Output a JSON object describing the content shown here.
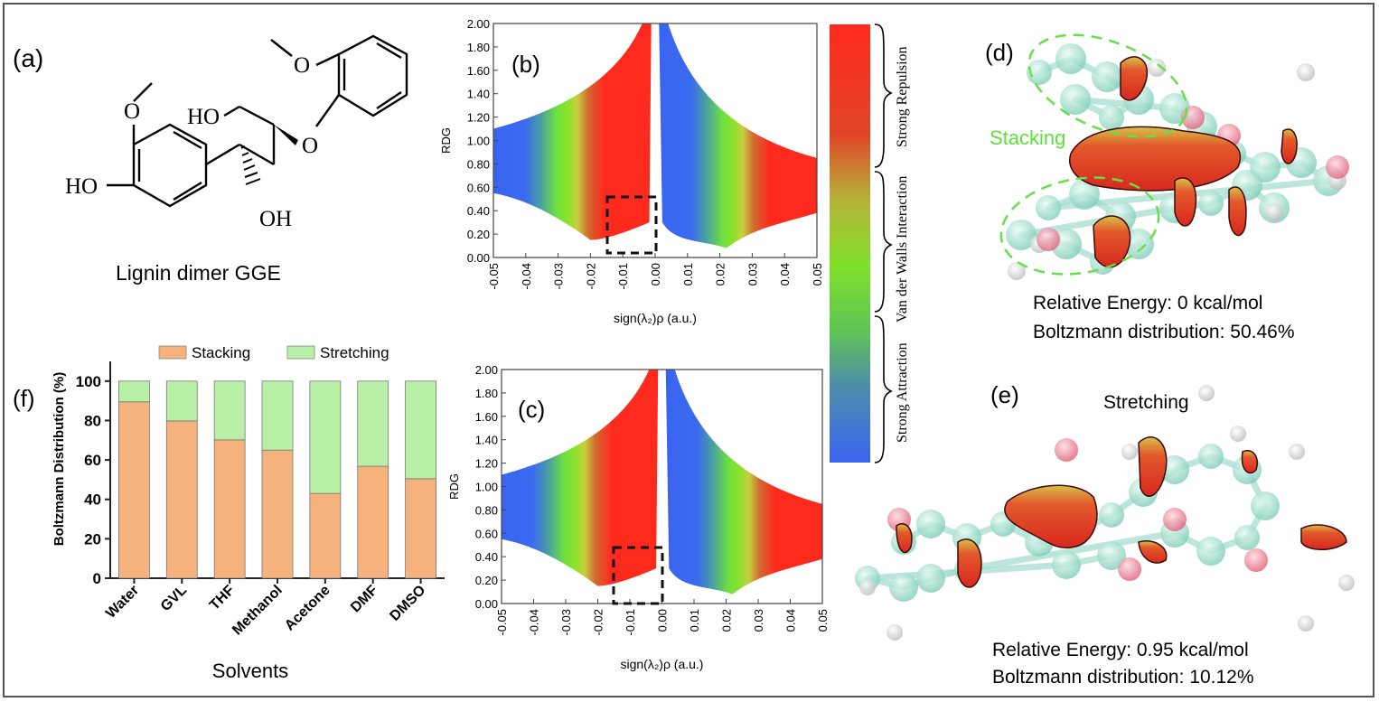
{
  "panel_a": {
    "label": "(a)",
    "caption": "Lignin dimer GGE",
    "atoms": {
      "o_methoxy_left": "O",
      "ho_left": "HO",
      "ho_chain": "HO",
      "o_ether": "O",
      "oh": "OH",
      "o_methoxy_right": "O"
    }
  },
  "panel_b": {
    "label": "(b)",
    "xlabel": "sign(λ₂)ρ (a.u.)",
    "ylabel": "RDG",
    "xticks": [
      "-0.05",
      "-0.04",
      "-0.03",
      "-0.02",
      "-0.01",
      "0.00",
      "0.01",
      "0.02",
      "0.03",
      "0.04",
      "0.05"
    ],
    "yticks": [
      "0.00",
      "0.20",
      "0.40",
      "0.60",
      "0.80",
      "1.00",
      "1.20",
      "1.40",
      "1.60",
      "1.80",
      "2.00"
    ]
  },
  "panel_c": {
    "label": "(c)",
    "xlabel": "sign(λ₂)ρ (a.u.)",
    "ylabel": "RDG",
    "xticks": [
      "-0.05",
      "-0.04",
      "-0.03",
      "-0.02",
      "-0.01",
      "0.00",
      "0.01",
      "0.02",
      "0.03",
      "0.04",
      "0.05"
    ],
    "yticks": [
      "0.00",
      "0.20",
      "0.40",
      "0.60",
      "0.80",
      "1.00",
      "1.20",
      "1.40",
      "1.60",
      "1.80",
      "2.00"
    ]
  },
  "colorbar": {
    "labels": [
      "Strong Repulsion",
      "Van der Walls Interaction",
      "Strong Attraction"
    ],
    "colors": [
      "#ff2a1e",
      "#7fe02a",
      "#3a64f0"
    ]
  },
  "panel_d": {
    "label": "(d)",
    "annotation": "Stacking",
    "energy": "Relative Energy:  0 kcal/mol",
    "boltzmann": "Boltzmann  distribution:  50.46%"
  },
  "panel_e": {
    "label": "(e)",
    "annotation": "Stretching",
    "energy": "Relative Energy:  0.95 kcal/mol",
    "boltzmann": "Boltzmann  distribution:  10.12%"
  },
  "chart_data": {
    "type": "bar",
    "label": "(f)",
    "stacked": true,
    "categories": [
      "Water",
      "GVL",
      "THF",
      "Methanol",
      "Acetone",
      "DMF",
      "DMSO"
    ],
    "series": [
      {
        "name": "Stacking",
        "color": "#f5b27c",
        "values": [
          89.5,
          79.8,
          70.2,
          65.0,
          43.0,
          56.8,
          50.5
        ]
      },
      {
        "name": "Stretching",
        "color": "#b7f0a6",
        "values": [
          10.5,
          20.2,
          29.8,
          35.0,
          57.0,
          43.2,
          49.5
        ]
      }
    ],
    "xlabel": "Solvents",
    "ylabel": "Boltzmann Distribution (%)",
    "yticks": [
      "0",
      "20",
      "40",
      "60",
      "80",
      "100"
    ],
    "ylim": [
      0,
      100
    ],
    "legend": "top"
  }
}
